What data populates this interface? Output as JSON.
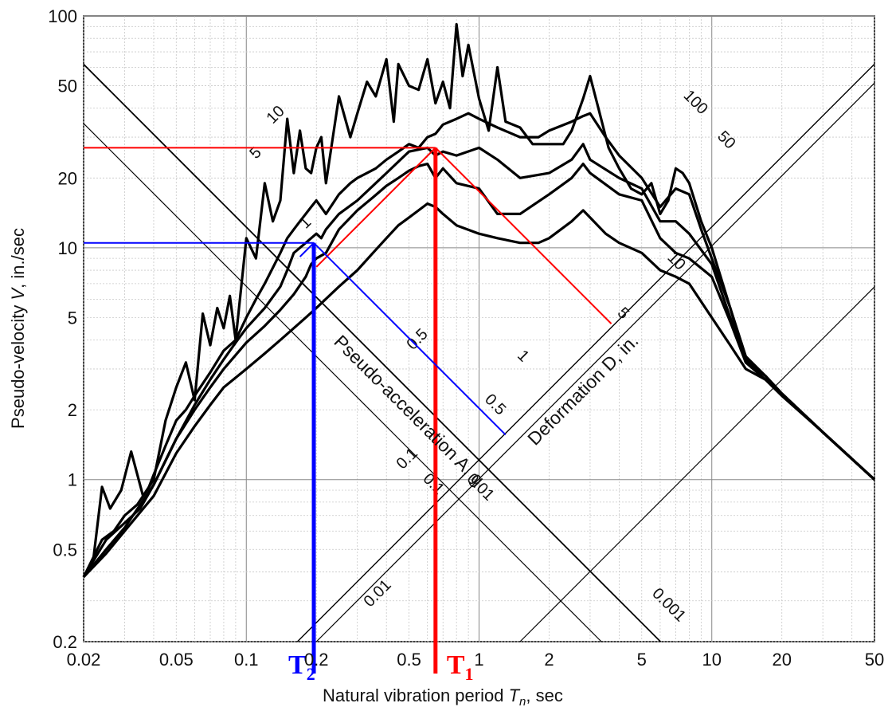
{
  "chart_data": {
    "type": "line",
    "scale": "log-log tripartite",
    "xlabel_prefix": "Natural vibration period ",
    "xlabel_symbol": "T",
    "xlabel_sub": "n",
    "xlabel_suffix": ", sec",
    "ylabel_prefix": "Pseudo-velocity ",
    "ylabel_symbol": "V",
    "ylabel_suffix": ", in./sec",
    "xlim": [
      0.02,
      50
    ],
    "ylim": [
      0.2,
      100
    ],
    "x_ticks": [
      "0.02",
      "0.05",
      "0.1",
      "0.2",
      "0.5",
      "1",
      "2",
      "5",
      "10",
      "20",
      "50"
    ],
    "y_ticks": [
      "0.2",
      "0.5",
      "1",
      "2",
      "5",
      "10",
      "20",
      "50",
      "100"
    ],
    "grid": true,
    "acceleration_axis": {
      "label": "Pseudo-acceleration A, g",
      "ticks": [
        "10",
        "5",
        "1",
        "0.5",
        "0.1",
        "0.01"
      ]
    },
    "deformation_axis": {
      "label": "Deformation D, in.",
      "ticks": [
        "100",
        "50",
        "10",
        "5",
        "1",
        "0.5",
        "0.1",
        "0.01",
        "0.001"
      ]
    },
    "series": [
      {
        "x": [
          0.02,
          0.022,
          0.024,
          0.026,
          0.029,
          0.032,
          0.036,
          0.04,
          0.045,
          0.05,
          0.055,
          0.06,
          0.065,
          0.07,
          0.075,
          0.08,
          0.085,
          0.09,
          0.1,
          0.11,
          0.12,
          0.13,
          0.14,
          0.15,
          0.16,
          0.17,
          0.18,
          0.19,
          0.2,
          0.21,
          0.22,
          0.25,
          0.28,
          0.3,
          0.33,
          0.36,
          0.4,
          0.43,
          0.45,
          0.5,
          0.55,
          0.6,
          0.65,
          0.7,
          0.75,
          0.8,
          0.85,
          0.9,
          1.0,
          1.1,
          1.2,
          1.3,
          1.5,
          1.7,
          2.0,
          2.3,
          2.5,
          2.8,
          3.0,
          3.3,
          3.6,
          4.0,
          4.5,
          5.0,
          5.5,
          6.0,
          6.5,
          7.0,
          7.5,
          8.0,
          9.0,
          10.0,
          12.0,
          14.0,
          17.0,
          20.0,
          30.0,
          50.0
        ],
        "values": [
          0.38,
          0.45,
          0.93,
          0.75,
          0.9,
          1.32,
          0.85,
          1.0,
          1.8,
          2.5,
          3.2,
          2.2,
          5.2,
          3.8,
          5.5,
          4.5,
          6.2,
          4.0,
          11.0,
          9.0,
          19.0,
          13.0,
          16.0,
          36.0,
          21.0,
          32.0,
          22.0,
          21.0,
          27.0,
          30.0,
          19.0,
          45.0,
          30.0,
          38.0,
          52.0,
          45.0,
          65.0,
          35.0,
          62.0,
          50.0,
          48.0,
          65.0,
          42.0,
          52.0,
          40.0,
          92.0,
          55.0,
          75.0,
          44.0,
          32.0,
          60.0,
          35.0,
          33.0,
          28.0,
          28.0,
          28.0,
          32.0,
          44.0,
          55.0,
          38.0,
          27.0,
          22.0,
          18.0,
          17.0,
          19.0,
          14.0,
          16.0,
          22.0,
          21.0,
          19.0,
          13.0,
          10.0,
          5.5,
          3.2,
          2.7,
          2.35,
          1.6,
          1.0
        ]
      },
      {
        "x": [
          0.02,
          0.024,
          0.027,
          0.03,
          0.034,
          0.038,
          0.04,
          0.045,
          0.05,
          0.055,
          0.06,
          0.07,
          0.08,
          0.09,
          0.1,
          0.11,
          0.12,
          0.13,
          0.14,
          0.15,
          0.16,
          0.17,
          0.18,
          0.19,
          0.2,
          0.22,
          0.25,
          0.28,
          0.3,
          0.33,
          0.36,
          0.4,
          0.45,
          0.5,
          0.55,
          0.6,
          0.65,
          0.7,
          0.8,
          0.9,
          1.0,
          1.2,
          1.5,
          1.8,
          2.0,
          2.5,
          2.8,
          3.0,
          3.5,
          4.0,
          5.0,
          6.0,
          7.0,
          8.0,
          9.0,
          10.0,
          12.0,
          14.0,
          17.0,
          20.0,
          30.0,
          50.0
        ],
        "values": [
          0.38,
          0.55,
          0.6,
          0.7,
          0.78,
          0.92,
          1.05,
          1.4,
          1.8,
          2.0,
          2.3,
          2.9,
          3.6,
          4.0,
          5.0,
          6.0,
          7.0,
          8.2,
          9.5,
          11.0,
          12.0,
          13.0,
          14.0,
          15.0,
          16.0,
          14.0,
          17.0,
          19.0,
          20.0,
          21.0,
          22.0,
          24.0,
          26.0,
          28.0,
          27.0,
          30.0,
          31.0,
          34.0,
          36.0,
          38.0,
          36.0,
          33.0,
          30.0,
          30.0,
          32.0,
          35.0,
          37.0,
          38.0,
          30.0,
          25.0,
          20.0,
          15.0,
          18.0,
          17.0,
          12.0,
          9.0,
          5.5,
          3.4,
          2.8,
          2.35,
          1.6,
          1.0
        ]
      },
      {
        "x": [
          0.02,
          0.025,
          0.03,
          0.035,
          0.04,
          0.05,
          0.06,
          0.07,
          0.08,
          0.09,
          0.1,
          0.12,
          0.14,
          0.15,
          0.16,
          0.18,
          0.19,
          0.2,
          0.21,
          0.22,
          0.25,
          0.3,
          0.35,
          0.4,
          0.5,
          0.55,
          0.6,
          0.65,
          0.7,
          0.8,
          1.0,
          1.2,
          1.5,
          2.0,
          2.5,
          2.8,
          3.0,
          4.0,
          5.0,
          6.0,
          7.0,
          8.0,
          10.0,
          12.0,
          14.0,
          17.0,
          20.0,
          30.0,
          50.0
        ],
        "values": [
          0.38,
          0.55,
          0.65,
          0.75,
          0.95,
          1.5,
          2.1,
          2.7,
          3.3,
          3.9,
          4.5,
          5.5,
          6.8,
          8.0,
          9.5,
          10.5,
          11.0,
          11.5,
          11.0,
          12.0,
          14.0,
          16.0,
          18.5,
          21.0,
          26.0,
          26.5,
          27.0,
          25.0,
          26.0,
          25.0,
          27.0,
          24.0,
          20.0,
          21.0,
          24.0,
          28.0,
          24.0,
          20.0,
          18.0,
          13.0,
          13.0,
          11.5,
          8.5,
          5.0,
          3.3,
          2.8,
          2.35,
          1.6,
          1.0
        ]
      },
      {
        "x": [
          0.02,
          0.025,
          0.03,
          0.04,
          0.05,
          0.06,
          0.07,
          0.08,
          0.1,
          0.12,
          0.14,
          0.16,
          0.18,
          0.19,
          0.2,
          0.22,
          0.25,
          0.3,
          0.35,
          0.4,
          0.45,
          0.5,
          0.55,
          0.6,
          0.65,
          0.7,
          0.8,
          1.0,
          1.2,
          1.5,
          2.0,
          2.5,
          2.8,
          3.0,
          4.0,
          5.0,
          6.0,
          7.0,
          8.0,
          10.0,
          12.0,
          14.0,
          17.0,
          20.0,
          30.0,
          50.0
        ],
        "values": [
          0.38,
          0.5,
          0.62,
          0.95,
          1.5,
          2.0,
          2.5,
          3.0,
          3.9,
          4.6,
          5.4,
          6.3,
          7.5,
          8.5,
          9.0,
          9.5,
          12.0,
          14.5,
          16.5,
          18.5,
          20.0,
          21.5,
          22.5,
          23.0,
          20.0,
          22.0,
          19.0,
          18.0,
          14.0,
          14.0,
          17.0,
          20.0,
          23.0,
          21.0,
          17.0,
          16.0,
          11.0,
          9.5,
          9.0,
          7.5,
          4.8,
          3.2,
          2.8,
          2.35,
          1.6,
          1.0
        ]
      },
      {
        "x": [
          0.02,
          0.025,
          0.03,
          0.04,
          0.05,
          0.06,
          0.07,
          0.08,
          0.1,
          0.12,
          0.14,
          0.16,
          0.18,
          0.2,
          0.25,
          0.3,
          0.35,
          0.4,
          0.45,
          0.5,
          0.55,
          0.6,
          0.65,
          0.7,
          0.8,
          1.0,
          1.2,
          1.5,
          1.8,
          2.0,
          2.5,
          2.8,
          3.0,
          3.5,
          4.0,
          5.0,
          6.0,
          7.0,
          8.0,
          10.0,
          12.0,
          14.0,
          17.0,
          20.0,
          30.0,
          50.0
        ],
        "values": [
          0.38,
          0.48,
          0.6,
          0.85,
          1.3,
          1.7,
          2.1,
          2.5,
          3.0,
          3.5,
          4.0,
          4.5,
          5.0,
          5.5,
          6.8,
          8.0,
          9.5,
          11.0,
          12.5,
          13.5,
          14.5,
          15.5,
          15.0,
          14.0,
          12.5,
          11.5,
          11.0,
          10.5,
          10.5,
          11.0,
          13.0,
          14.5,
          13.5,
          11.5,
          10.5,
          9.5,
          8.0,
          7.5,
          7.0,
          5.0,
          3.8,
          3.0,
          2.7,
          2.3,
          1.6,
          1.0
        ]
      }
    ],
    "markers": [
      {
        "label": "T",
        "sub": "1",
        "color": "#ff0000",
        "period": 0.65,
        "velocity": 27.0,
        "diag_end_period": 3.7,
        "lower_start_period": 0.2
      },
      {
        "label": "T",
        "sub": "2",
        "color": "#0000ff",
        "period": 0.195,
        "velocity": 10.5,
        "diag_end_period": 1.3,
        "lower_start_period": 0.17
      }
    ]
  }
}
